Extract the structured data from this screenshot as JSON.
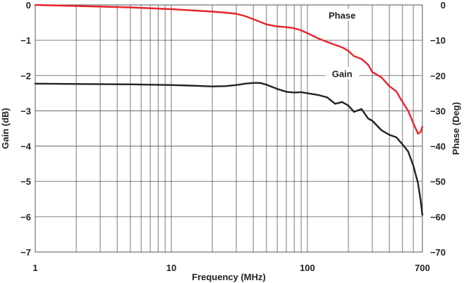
{
  "chart_data": {
    "type": "line",
    "xlabel": "Frequency (MHz)",
    "ylabel_left": "Gain (dB)",
    "ylabel_right": "Phase (Deg)",
    "x_scale": "log",
    "xlim": [
      1,
      700
    ],
    "ylim_left": [
      -7,
      0
    ],
    "ylim_right": [
      -70,
      0
    ],
    "x_ticks": [
      1,
      10,
      100,
      700
    ],
    "x_tick_labels": [
      "1",
      "10",
      "100",
      "700"
    ],
    "y_left_ticks": [
      0,
      -1,
      -2,
      -3,
      -4,
      -5,
      -6,
      -7
    ],
    "y_left_tick_labels": [
      "0",
      "−1",
      "−2",
      "−3",
      "−4",
      "−5",
      "−6",
      "−7"
    ],
    "y_right_ticks": [
      0,
      -10,
      -20,
      -30,
      -40,
      -50,
      -60,
      -70
    ],
    "y_right_tick_labels": [
      "0",
      "−10",
      "−20",
      "−30",
      "−40",
      "−50",
      "−60",
      "−70"
    ],
    "grid": true,
    "series": [
      {
        "name": "Phase",
        "axis": "right",
        "color": "#e8242c",
        "x": [
          1,
          2,
          5,
          10,
          15,
          20,
          25,
          30,
          35,
          40,
          45,
          50,
          60,
          70,
          80,
          90,
          100,
          120,
          140,
          160,
          180,
          200,
          220,
          250,
          280,
          300,
          350,
          400,
          450,
          500,
          550,
          600,
          650,
          680,
          700
        ],
        "y": [
          0,
          -0.3,
          -0.7,
          -1.2,
          -1.6,
          -1.9,
          -2.2,
          -2.5,
          -3.2,
          -4.0,
          -4.8,
          -5.5,
          -6.1,
          -6.3,
          -6.6,
          -7.2,
          -8.0,
          -9.5,
          -10.5,
          -11.3,
          -12.0,
          -13.0,
          -14.5,
          -15.3,
          -17.0,
          -19.0,
          -20.5,
          -23.0,
          -24.5,
          -27.5,
          -30.0,
          -33.5,
          -36.5,
          -36.0,
          -34.5
        ]
      },
      {
        "name": "Gain",
        "axis": "left",
        "color": "#222222",
        "x": [
          1,
          2,
          5,
          10,
          15,
          20,
          25,
          30,
          35,
          40,
          45,
          50,
          60,
          70,
          80,
          90,
          100,
          120,
          140,
          160,
          180,
          200,
          220,
          250,
          280,
          300,
          350,
          400,
          450,
          500,
          550,
          600,
          650,
          680,
          700
        ],
        "y": [
          -2.23,
          -2.24,
          -2.25,
          -2.27,
          -2.29,
          -2.31,
          -2.3,
          -2.27,
          -2.23,
          -2.21,
          -2.21,
          -2.26,
          -2.38,
          -2.46,
          -2.48,
          -2.47,
          -2.5,
          -2.55,
          -2.62,
          -2.8,
          -2.75,
          -2.85,
          -3.03,
          -2.95,
          -3.22,
          -3.28,
          -3.55,
          -3.68,
          -3.75,
          -3.95,
          -4.15,
          -4.55,
          -5.05,
          -5.55,
          -5.95
        ]
      }
    ],
    "annotations": [
      {
        "text": "Phase",
        "series": "Phase",
        "x": 180,
        "y_left": -0.35
      },
      {
        "text": "Gain",
        "series": "Gain",
        "x": 180,
        "y_left": -2.0
      }
    ]
  }
}
